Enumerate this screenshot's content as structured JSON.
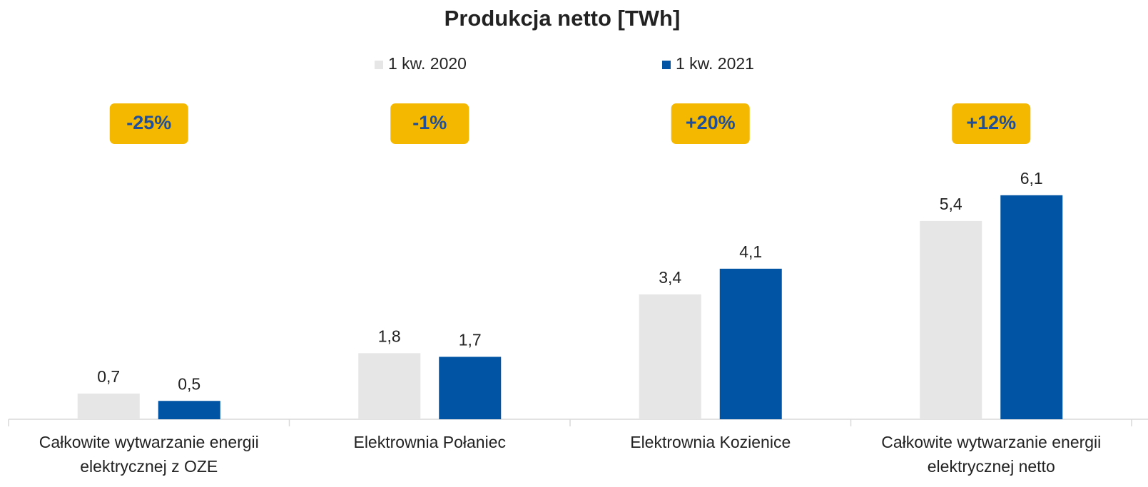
{
  "chart_data": {
    "type": "bar",
    "title": "Produkcja netto [TWh]",
    "categories": [
      "Całkowite wytwarzanie energii\nelektrycznej z OZE",
      "Elektrownia Połaniec",
      "Elektrownia Kozienice",
      "Całkowite wytwarzanie energii\nelektrycznej netto"
    ],
    "series": [
      {
        "name": "1 kw. 2020",
        "color": "#e6e6e6",
        "values": [
          0.7,
          1.8,
          3.4,
          5.4
        ],
        "value_labels": [
          "0,7",
          "1,8",
          "3,4",
          "5,4"
        ]
      },
      {
        "name": "1 kw. 2021",
        "color": "#0054a3",
        "values": [
          0.5,
          1.7,
          4.1,
          6.1
        ],
        "value_labels": [
          "0,5",
          "1,7",
          "4,1",
          "6,1"
        ]
      }
    ],
    "annotations": [
      "-25%",
      "-1%",
      "+20%",
      "+12%"
    ],
    "annotation_color": "#f5b800",
    "ylim": [
      0,
      7
    ]
  }
}
